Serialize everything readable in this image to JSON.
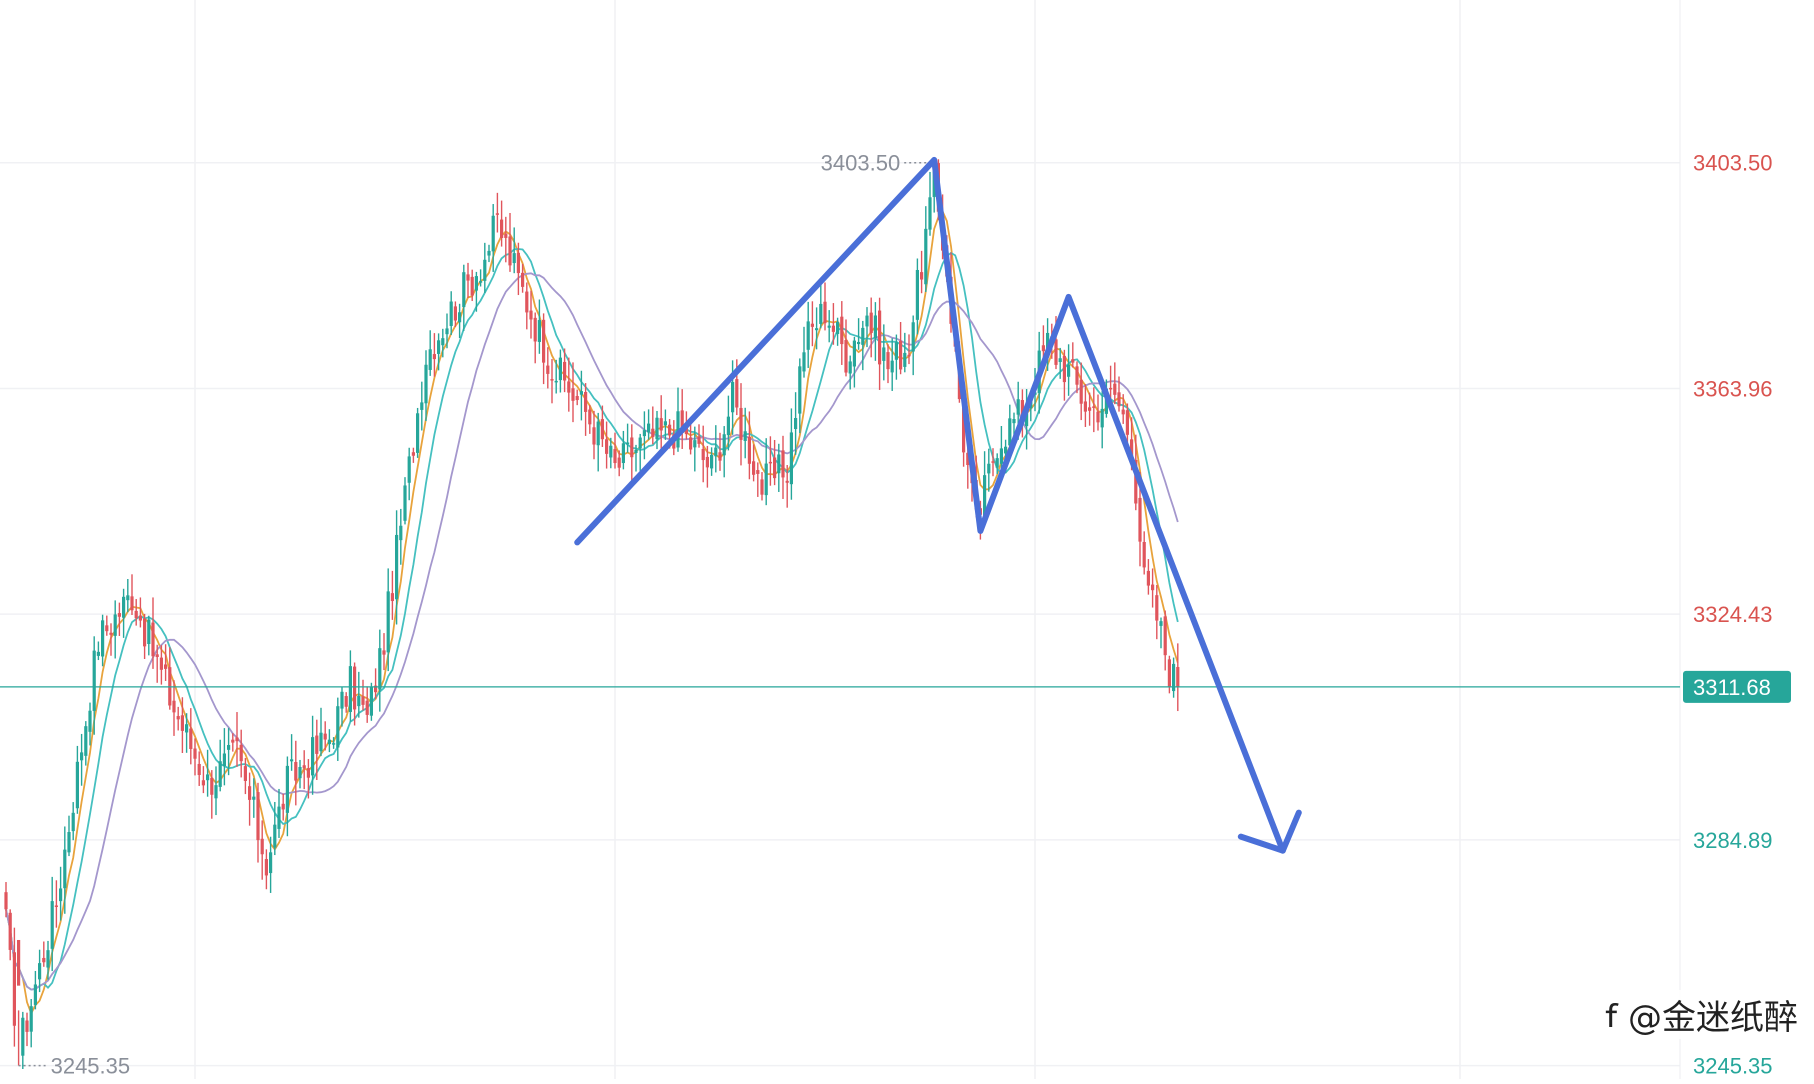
{
  "chart_data": {
    "type": "candlestick",
    "y_axis": {
      "position": "right",
      "ticks": [
        "3403.50",
        "3363.96",
        "3324.43",
        "3284.89",
        "3245.35"
      ],
      "tick_values": [
        3403.5,
        3363.96,
        3324.43,
        3284.89,
        3245.35
      ],
      "range": [
        3243,
        3432
      ]
    },
    "current_price": {
      "label": "3311.68",
      "value": 3311.68
    },
    "extremes": {
      "high": {
        "label": "3403.50",
        "value": 3403.5,
        "candle_index": 221
      },
      "low": {
        "label": "3245.35",
        "value": 3245.35,
        "candle_index": 3
      }
    },
    "grid": true,
    "candle_count": 280,
    "anchors": [
      [
        0,
        3270
      ],
      [
        3,
        3248
      ],
      [
        12,
        3274
      ],
      [
        22,
        3320
      ],
      [
        30,
        3328
      ],
      [
        40,
        3308
      ],
      [
        48,
        3295
      ],
      [
        55,
        3300
      ],
      [
        62,
        3281
      ],
      [
        67,
        3295
      ],
      [
        77,
        3303
      ],
      [
        82,
        3312
      ],
      [
        86,
        3306
      ],
      [
        90,
        3320
      ],
      [
        95,
        3345
      ],
      [
        100,
        3370
      ],
      [
        108,
        3380
      ],
      [
        114,
        3387
      ],
      [
        117,
        3393
      ],
      [
        122,
        3383
      ],
      [
        130,
        3368
      ],
      [
        138,
        3360
      ],
      [
        145,
        3350
      ],
      [
        152,
        3355
      ],
      [
        160,
        3357
      ],
      [
        168,
        3350
      ],
      [
        173,
        3362
      ],
      [
        180,
        3347
      ],
      [
        186,
        3350
      ],
      [
        190,
        3372
      ],
      [
        195,
        3378
      ],
      [
        200,
        3370
      ],
      [
        205,
        3377
      ],
      [
        210,
        3368
      ],
      [
        215,
        3372
      ],
      [
        221,
        3400
      ],
      [
        224,
        3385
      ],
      [
        228,
        3355
      ],
      [
        231,
        3340
      ],
      [
        236,
        3355
      ],
      [
        242,
        3360
      ],
      [
        248,
        3372
      ],
      [
        253,
        3367
      ],
      [
        258,
        3360
      ],
      [
        264,
        3363
      ],
      [
        268,
        3355
      ],
      [
        271,
        3330
      ],
      [
        274,
        3324
      ],
      [
        277,
        3315
      ],
      [
        279,
        3311.68
      ]
    ],
    "moving_averages": [
      {
        "period": 5,
        "color": "#e8a33c"
      },
      {
        "period": 10,
        "color": "#45c0c0"
      },
      {
        "period": 20,
        "color": "#a497cd"
      }
    ],
    "colors": {
      "up": "#26a69a",
      "down": "#e0555c",
      "price_line": "#26a69a",
      "upper_tick": "#d9534f",
      "lower_tick": "#26a69a",
      "drawing": "#4a6fd8"
    }
  },
  "watermark": "@金迷纸醉"
}
